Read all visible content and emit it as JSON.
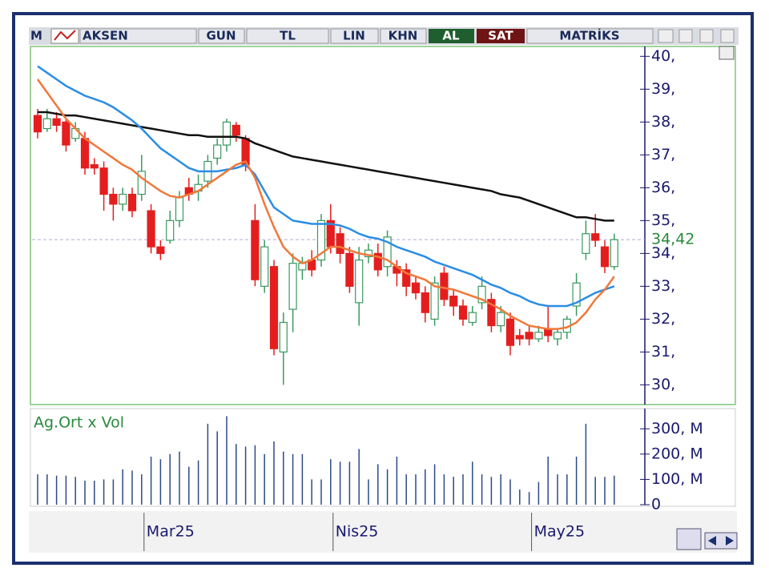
{
  "toolbar": {
    "logo": "M",
    "items": [
      "AKSEN",
      "GUN",
      "TL",
      "LIN",
      "KHN",
      "AL",
      "SAT",
      "MATRİKS"
    ]
  },
  "chart_data": [
    {
      "type": "candlestick",
      "open": [
        38.2,
        37.8,
        38.1,
        38.0,
        37.5,
        37.5,
        36.7,
        36.6,
        35.8,
        35.5,
        35.8,
        35.8,
        35.3,
        34.2,
        34.4,
        35.0,
        36.0,
        35.9,
        36.2,
        36.9,
        37.3,
        37.9,
        37.5,
        35.0,
        33.0,
        33.6,
        31.0,
        32.3,
        33.5,
        33.8,
        33.8,
        35.0,
        34.6,
        34.0,
        32.5,
        33.9,
        34.0,
        33.6,
        33.6,
        33.5,
        33.1,
        32.8,
        32.0,
        33.4,
        32.7,
        32.4,
        31.9,
        32.5,
        32.6,
        31.8,
        32.0,
        31.5,
        31.6,
        31.4,
        31.7,
        31.4,
        31.6,
        32.4,
        34.0,
        34.6,
        34.2,
        33.6
      ],
      "high": [
        38.4,
        38.4,
        38.3,
        38.1,
        38.0,
        37.7,
        36.9,
        36.8,
        36.0,
        36.0,
        36.0,
        37.0,
        35.5,
        34.4,
        35.3,
        35.9,
        36.3,
        36.4,
        37.0,
        37.5,
        38.1,
        38.0,
        37.6,
        35.5,
        34.4,
        33.8,
        32.2,
        34.0,
        33.9,
        34.1,
        35.2,
        35.5,
        34.8,
        34.2,
        34.2,
        34.3,
        34.3,
        34.7,
        33.8,
        33.7,
        33.3,
        33.0,
        33.3,
        33.6,
        32.9,
        32.6,
        32.4,
        33.3,
        32.8,
        32.4,
        32.2,
        31.7,
        31.8,
        31.8,
        32.4,
        31.7,
        32.1,
        33.4,
        35.0,
        35.2,
        34.4,
        34.6
      ],
      "low": [
        37.5,
        37.7,
        37.7,
        37.1,
        37.4,
        36.4,
        36.4,
        35.3,
        35.0,
        35.3,
        35.1,
        35.6,
        34.0,
        33.8,
        34.3,
        34.8,
        35.6,
        35.6,
        36.0,
        36.7,
        37.1,
        37.4,
        36.5,
        33.0,
        32.8,
        30.9,
        30.0,
        31.6,
        33.2,
        33.3,
        33.6,
        34.0,
        33.7,
        32.8,
        31.8,
        33.7,
        33.3,
        33.3,
        33.0,
        32.7,
        32.6,
        31.9,
        31.8,
        32.4,
        32.1,
        31.8,
        31.8,
        32.3,
        31.6,
        31.6,
        30.9,
        31.2,
        31.2,
        31.3,
        31.3,
        31.2,
        31.4,
        32.1,
        33.8,
        34.2,
        33.4,
        33.5
      ],
      "close": [
        37.7,
        38.1,
        37.9,
        37.3,
        37.8,
        36.6,
        36.6,
        35.8,
        35.5,
        35.8,
        35.3,
        36.5,
        34.2,
        34.0,
        35.0,
        35.7,
        35.8,
        36.1,
        36.8,
        37.3,
        38.0,
        37.6,
        36.7,
        33.2,
        34.2,
        31.1,
        31.9,
        33.7,
        33.7,
        33.5,
        35.0,
        34.2,
        34.0,
        33.0,
        33.8,
        34.1,
        33.5,
        34.5,
        33.4,
        33.0,
        32.8,
        32.2,
        33.1,
        32.6,
        32.4,
        32.0,
        32.2,
        33.0,
        31.8,
        32.2,
        31.2,
        31.4,
        31.4,
        31.6,
        31.5,
        31.6,
        32.0,
        33.1,
        34.6,
        34.4,
        33.6,
        34.42
      ],
      "up_color": "#3a9a60",
      "down_color": "#e41e1e",
      "series": [
        {
          "color": "#111111",
          "values": [
            38.3,
            38.3,
            38.25,
            38.2,
            38.2,
            38.15,
            38.1,
            38.05,
            38.0,
            37.95,
            37.9,
            37.85,
            37.8,
            37.75,
            37.7,
            37.65,
            37.6,
            37.6,
            37.55,
            37.55,
            37.55,
            37.55,
            37.5,
            37.35,
            37.25,
            37.15,
            37.05,
            36.95,
            36.9,
            36.85,
            36.8,
            36.75,
            36.7,
            36.65,
            36.6,
            36.55,
            36.5,
            36.45,
            36.4,
            36.35,
            36.3,
            36.25,
            36.2,
            36.15,
            36.1,
            36.05,
            36.0,
            35.95,
            35.9,
            35.8,
            35.75,
            35.7,
            35.6,
            35.5,
            35.4,
            35.3,
            35.2,
            35.1,
            35.1,
            35.05,
            35.0,
            35.0
          ]
        },
        {
          "color": "#2b8de4",
          "values": [
            39.7,
            39.5,
            39.3,
            39.1,
            38.95,
            38.8,
            38.7,
            38.6,
            38.45,
            38.25,
            38.05,
            37.8,
            37.5,
            37.2,
            37.0,
            36.8,
            36.6,
            36.5,
            36.5,
            36.5,
            36.55,
            36.6,
            36.7,
            36.4,
            35.9,
            35.4,
            35.2,
            35.0,
            34.95,
            34.9,
            34.9,
            34.9,
            34.85,
            34.75,
            34.6,
            34.5,
            34.45,
            34.35,
            34.2,
            34.1,
            34.0,
            33.9,
            33.75,
            33.65,
            33.55,
            33.45,
            33.35,
            33.2,
            33.05,
            32.95,
            32.8,
            32.7,
            32.55,
            32.45,
            32.4,
            32.4,
            32.4,
            32.5,
            32.65,
            32.8,
            32.9,
            33.0
          ]
        },
        {
          "color": "#f0783a",
          "values": [
            39.3,
            38.9,
            38.5,
            38.1,
            37.8,
            37.5,
            37.3,
            37.1,
            36.9,
            36.7,
            36.55,
            36.3,
            36.1,
            35.9,
            35.75,
            35.7,
            35.8,
            35.9,
            36.1,
            36.3,
            36.5,
            36.7,
            36.8,
            36.3,
            35.5,
            34.8,
            34.2,
            33.9,
            33.7,
            33.8,
            34.0,
            34.2,
            34.2,
            34.1,
            34.0,
            33.95,
            33.9,
            33.8,
            33.6,
            33.4,
            33.3,
            33.2,
            33.0,
            32.95,
            32.9,
            32.8,
            32.7,
            32.6,
            32.45,
            32.3,
            32.1,
            31.95,
            31.8,
            31.75,
            31.7,
            31.7,
            31.75,
            31.9,
            32.2,
            32.6,
            32.9,
            33.3
          ]
        }
      ],
      "ylim": [
        29.4,
        40.3
      ],
      "yticks": [
        {
          "value": 30,
          "label": "30,"
        },
        {
          "value": 31,
          "label": "31,"
        },
        {
          "value": 32,
          "label": "32,"
        },
        {
          "value": 33,
          "label": "33,"
        },
        {
          "value": 34,
          "label": "34,"
        },
        {
          "value": 35,
          "label": "35,"
        },
        {
          "value": 36,
          "label": "36,"
        },
        {
          "value": 37,
          "label": "37,"
        },
        {
          "value": 38,
          "label": "38,"
        },
        {
          "value": 39,
          "label": "39,"
        },
        {
          "value": 40,
          "label": "40,"
        }
      ],
      "last_price": {
        "value": 34.42,
        "label": "34,42"
      }
    },
    {
      "type": "volume",
      "title": "Ag.Ort x Vol",
      "color": "#2c4a86",
      "values": [
        120,
        120,
        115,
        115,
        110,
        95,
        95,
        100,
        100,
        140,
        135,
        120,
        190,
        180,
        200,
        210,
        150,
        175,
        320,
        290,
        350,
        240,
        230,
        235,
        200,
        250,
        210,
        200,
        200,
        100,
        100,
        180,
        170,
        170,
        220,
        100,
        160,
        140,
        190,
        120,
        120,
        140,
        160,
        120,
        110,
        120,
        170,
        120,
        110,
        120,
        100,
        60,
        50,
        90,
        190,
        120,
        120,
        190,
        320,
        110,
        110,
        115
      ],
      "categories": [
        null,
        null,
        null,
        null,
        null,
        null,
        null,
        null,
        null,
        null,
        null,
        "Mar25",
        null,
        null,
        null,
        null,
        null,
        null,
        null,
        null,
        null,
        null,
        null,
        null,
        null,
        null,
        null,
        null,
        null,
        null,
        null,
        "Nis25",
        null,
        null,
        null,
        null,
        null,
        null,
        null,
        null,
        null,
        null,
        null,
        null,
        null,
        null,
        null,
        null,
        null,
        null,
        null,
        null,
        "May25",
        null,
        null,
        null,
        null,
        null,
        null,
        null,
        null,
        null
      ],
      "ylim": [
        0,
        380
      ],
      "yticks": [
        0,
        {
          "value": 100,
          "label": "100, M"
        },
        {
          "value": 200,
          "label": "200, M"
        },
        {
          "value": 300,
          "label": "300, M"
        }
      ]
    }
  ]
}
